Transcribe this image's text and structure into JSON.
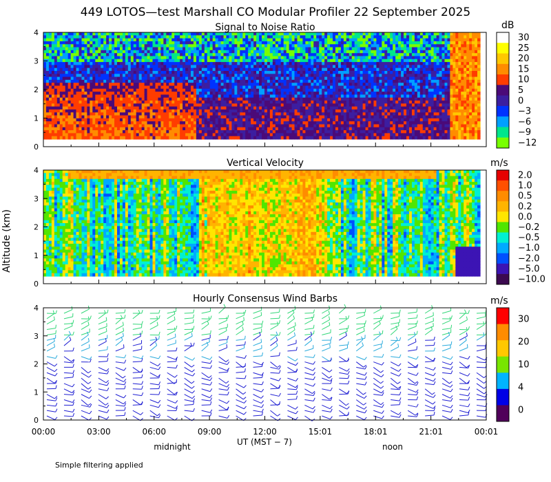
{
  "title": "449 LOTOS—test Marshall CO Modular Profiler 22 September 2025",
  "ylabel": "Altitude (km)",
  "footnote": "Simple filtering applied",
  "chart_data": [
    {
      "type": "heatmap",
      "title": "Signal to Noise Ratio",
      "ylim": [
        0,
        4
      ],
      "yticks": [
        "0",
        "1",
        "2",
        "3",
        "4"
      ],
      "units": "dB",
      "colorbar": {
        "labels": [
          "30",
          "25",
          "20",
          "15",
          "10",
          "5",
          "0",
          "−3",
          "−6",
          "−9",
          "−12"
        ],
        "colors": [
          "#ffffff",
          "#ffff00",
          "#ffc800",
          "#ff8c00",
          "#ff3c00",
          "#4b0a78",
          "#3c1ea0",
          "#0032ff",
          "#00a0ff",
          "#00e68c",
          "#78ff00"
        ]
      }
    },
    {
      "type": "heatmap",
      "title": "Vertical Velocity",
      "ylim": [
        0,
        4
      ],
      "yticks": [
        "0",
        "1",
        "2",
        "3",
        "4"
      ],
      "units": "m/s",
      "colorbar": {
        "labels": [
          "2.0",
          "1.0",
          "0.5",
          "0.2",
          "0.0",
          "−0.2",
          "−0.5",
          "−1.0",
          "−2.0",
          "−5.0",
          "−10.0"
        ],
        "colors": [
          "#e60000",
          "#ff5000",
          "#ff8c00",
          "#ffb400",
          "#ffe600",
          "#50e600",
          "#00f0d2",
          "#00aaff",
          "#0050ff",
          "#3c14b4",
          "#3c0a50"
        ]
      }
    },
    {
      "type": "scatter",
      "title": "Hourly Consensus Wind Barbs",
      "ylim": [
        0,
        4
      ],
      "yticks": [
        "0",
        "1",
        "2",
        "3",
        "4"
      ],
      "units": "m/s",
      "colorbar": {
        "labels": [
          "30",
          "20",
          "10",
          "4",
          "0"
        ],
        "colors": [
          "#ff0000",
          "#ff8c00",
          "#ffc800",
          "#78e600",
          "#00b4ff",
          "#0000e6",
          "#50005a"
        ]
      }
    }
  ],
  "xaxis": {
    "label": "UT  (MST − 7)",
    "ticks": [
      "00:00",
      "03:00",
      "06:00",
      "09:00",
      "12:00",
      "15:01",
      "18:01",
      "21:01",
      "00:01"
    ],
    "markers": [
      "midnight",
      "noon"
    ]
  },
  "colors": {
    "snr_low": "#4b0a78",
    "snr_high": "#ff8c00",
    "barb_upper": "#32d778",
    "barb_mid": "#28aadc",
    "barb_low": "#1e1ed2"
  }
}
